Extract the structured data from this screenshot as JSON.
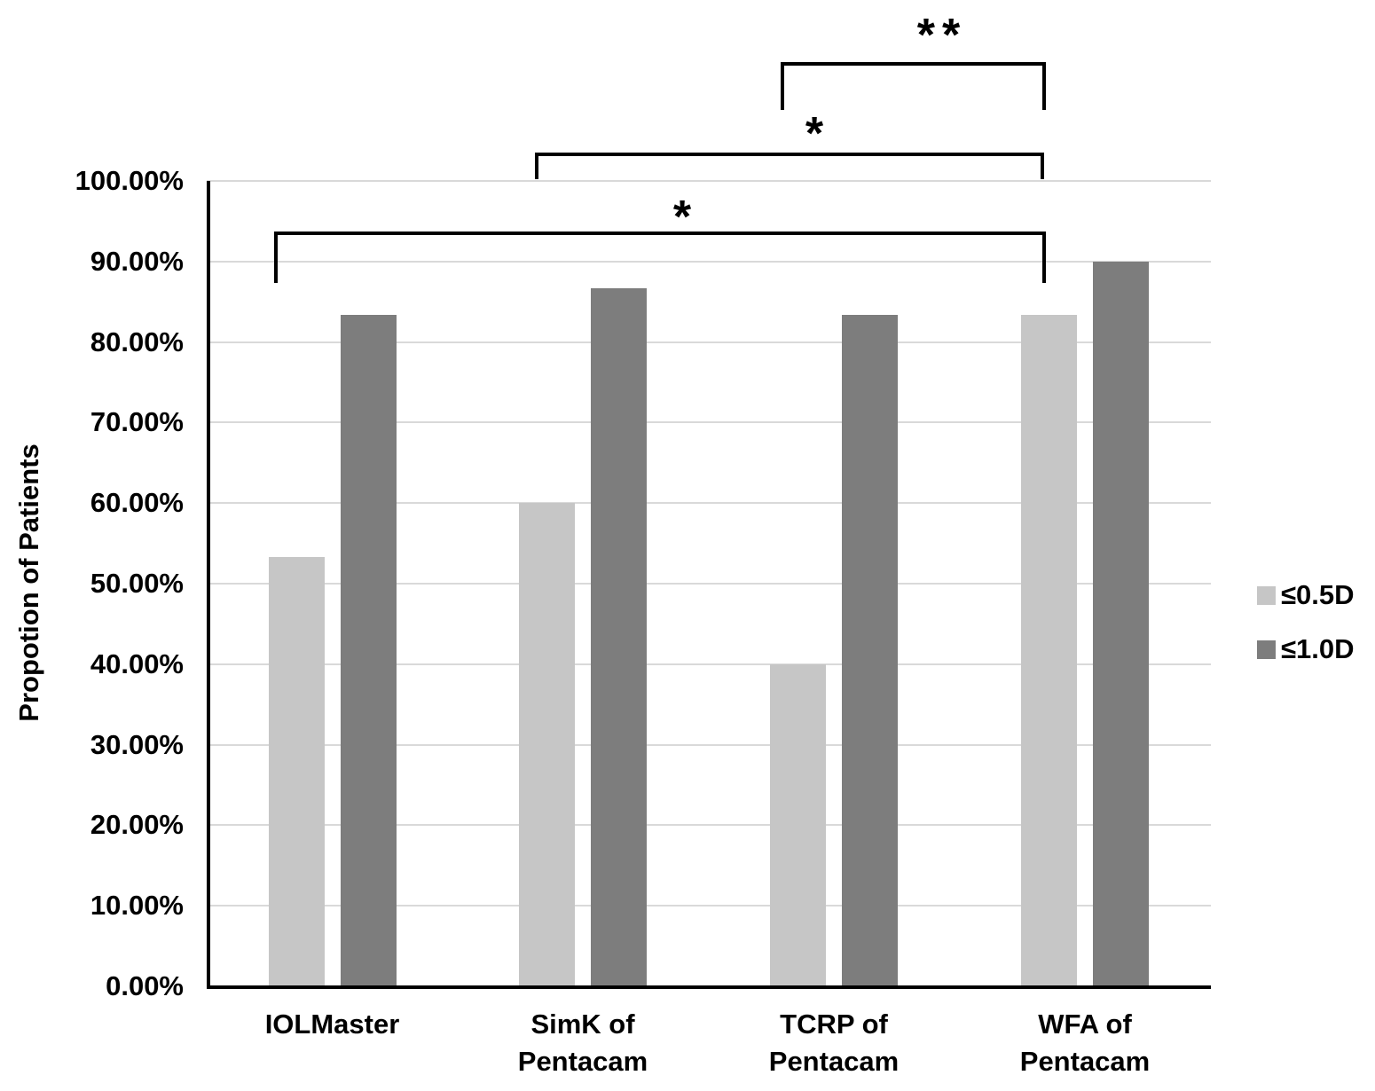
{
  "chart_data": {
    "type": "bar",
    "title": "",
    "ylabel": "Propotion of Patients",
    "xlabel": "",
    "categories": [
      [
        "IOLMaster"
      ],
      [
        "SimK of",
        "Pentacam"
      ],
      [
        "TCRP of",
        "Pentacam"
      ],
      [
        "WFA of",
        "Pentacam"
      ]
    ],
    "series": [
      {
        "name": "≤0.5D",
        "color": "#c6c6c6",
        "values": [
          53.33,
          60.0,
          40.0,
          83.33
        ]
      },
      {
        "name": "≤1.0D",
        "color": "#7d7d7d",
        "values": [
          83.33,
          86.67,
          83.33,
          90.0
        ]
      }
    ],
    "y_ticks": [
      "100.00%",
      "90.00%",
      "80.00%",
      "70.00%",
      "60.00%",
      "50.00%",
      "40.00%",
      "30.00%",
      "20.00%",
      "10.00%",
      "0.00%"
    ],
    "ylim": [
      0,
      100
    ],
    "grid": true,
    "legend_position": "right",
    "significance_brackets": [
      {
        "label": "**",
        "from": "TCRP of Pentacam",
        "to": "WFA of Pentacam"
      },
      {
        "label": "*",
        "from": "SimK of Pentacam",
        "to": "WFA of Pentacam"
      },
      {
        "label": "*",
        "from": "IOLMaster",
        "to": "WFA of Pentacam"
      }
    ],
    "colors": {
      "gridline": "#d9d9d9",
      "axis": "#000000",
      "text": "#000000",
      "background": "#ffffff"
    }
  }
}
